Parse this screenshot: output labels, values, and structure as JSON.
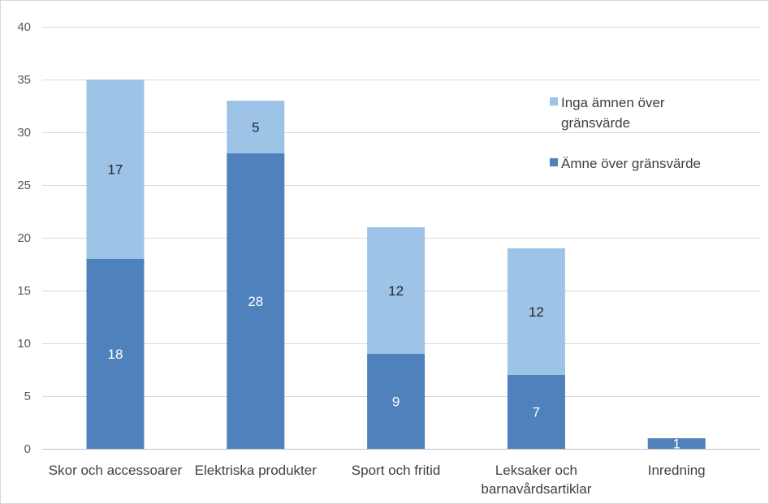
{
  "chart_data": {
    "type": "bar",
    "stacked": true,
    "title": "",
    "xlabel": "",
    "ylabel": "",
    "ylim": [
      0,
      40
    ],
    "yticks": [
      0,
      5,
      10,
      15,
      20,
      25,
      30,
      35,
      40
    ],
    "grid": true,
    "legend_position": "right",
    "categories": [
      [
        "Skor och accessoarer"
      ],
      [
        "Elektriska produkter"
      ],
      [
        "Sport och fritid"
      ],
      [
        "Leksaker och",
        "barnavårdsartiklar"
      ],
      [
        "Inredning"
      ]
    ],
    "series": [
      {
        "name": "Ämne över gränsvärde",
        "color": "#4f81bd",
        "label_color": "#ffffff",
        "values": [
          18,
          28,
          9,
          7,
          1
        ]
      },
      {
        "name": "Inga ämnen över gränsvärde",
        "legend_lines": [
          "Inga ämnen över",
          "gränsvärde"
        ],
        "color": "#9dc3e6",
        "label_color": "#262626",
        "values": [
          17,
          5,
          12,
          12,
          null
        ]
      }
    ],
    "legend_order": [
      1,
      0
    ]
  }
}
